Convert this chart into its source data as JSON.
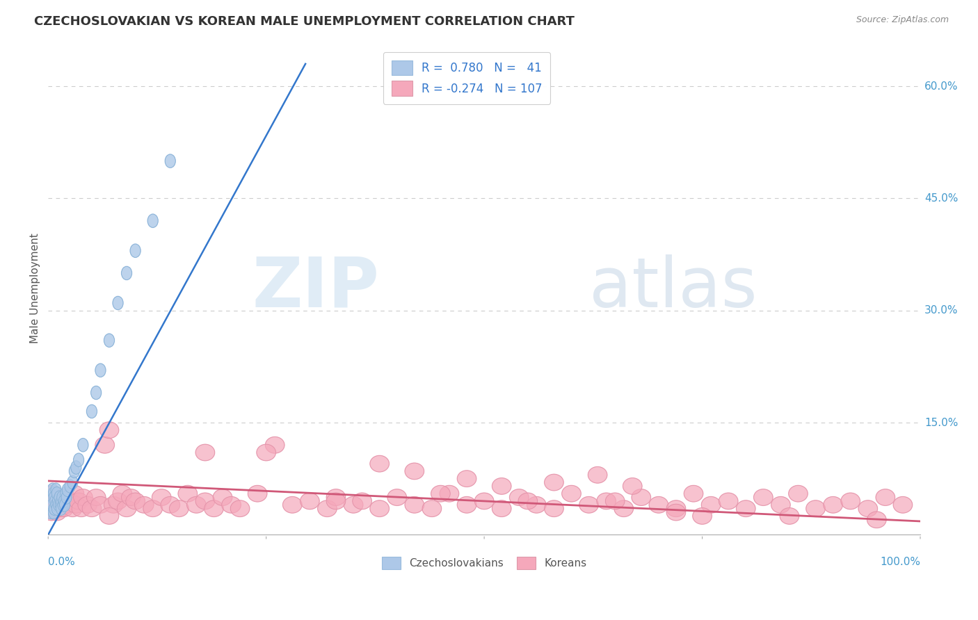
{
  "title": "CZECHOSLOVAKIAN VS KOREAN MALE UNEMPLOYMENT CORRELATION CHART",
  "source_text": "Source: ZipAtlas.com",
  "ylabel": "Male Unemployment",
  "x_range": [
    0.0,
    1.0
  ],
  "y_range": [
    0.0,
    0.66
  ],
  "legend_blue_r": "R =  0.780",
  "legend_blue_n": "N =   41",
  "legend_pink_r": "R = -0.274",
  "legend_pink_n": "N = 107",
  "watermark1": "ZIP",
  "watermark2": "atlas",
  "blue_color": "#adc8e8",
  "pink_color": "#f5a8bb",
  "blue_line_color": "#3377cc",
  "pink_line_color": "#d05878",
  "axis_label_color": "#4499cc",
  "grid_color": "#cccccc",
  "blue_line_x": [
    0.0,
    0.295
  ],
  "blue_line_y": [
    0.0,
    0.63
  ],
  "pink_line_x": [
    0.0,
    1.0
  ],
  "pink_line_y": [
    0.072,
    0.018
  ],
  "blue_scatter_x": [
    0.003,
    0.004,
    0.005,
    0.005,
    0.006,
    0.006,
    0.007,
    0.007,
    0.008,
    0.009,
    0.009,
    0.01,
    0.01,
    0.011,
    0.012,
    0.013,
    0.014,
    0.015,
    0.015,
    0.016,
    0.017,
    0.018,
    0.019,
    0.02,
    0.021,
    0.022,
    0.025,
    0.028,
    0.03,
    0.032,
    0.035,
    0.04,
    0.05,
    0.055,
    0.06,
    0.07,
    0.08,
    0.09,
    0.1,
    0.12,
    0.14
  ],
  "blue_scatter_y": [
    0.03,
    0.05,
    0.04,
    0.06,
    0.03,
    0.055,
    0.035,
    0.05,
    0.045,
    0.04,
    0.06,
    0.035,
    0.055,
    0.045,
    0.04,
    0.05,
    0.04,
    0.045,
    0.035,
    0.05,
    0.04,
    0.045,
    0.04,
    0.055,
    0.05,
    0.06,
    0.065,
    0.07,
    0.085,
    0.09,
    0.1,
    0.12,
    0.165,
    0.19,
    0.22,
    0.26,
    0.31,
    0.35,
    0.38,
    0.42,
    0.5
  ],
  "pink_scatter_x": [
    0.003,
    0.004,
    0.005,
    0.005,
    0.006,
    0.007,
    0.008,
    0.009,
    0.01,
    0.01,
    0.012,
    0.013,
    0.014,
    0.015,
    0.016,
    0.017,
    0.018,
    0.02,
    0.022,
    0.025,
    0.028,
    0.03,
    0.032,
    0.035,
    0.038,
    0.04,
    0.045,
    0.05,
    0.055,
    0.06,
    0.065,
    0.07,
    0.075,
    0.08,
    0.085,
    0.09,
    0.095,
    0.1,
    0.11,
    0.12,
    0.13,
    0.14,
    0.15,
    0.16,
    0.17,
    0.18,
    0.19,
    0.2,
    0.21,
    0.22,
    0.24,
    0.26,
    0.28,
    0.3,
    0.32,
    0.33,
    0.35,
    0.36,
    0.38,
    0.4,
    0.42,
    0.44,
    0.46,
    0.48,
    0.5,
    0.52,
    0.54,
    0.56,
    0.58,
    0.6,
    0.62,
    0.64,
    0.66,
    0.68,
    0.7,
    0.72,
    0.74,
    0.76,
    0.78,
    0.8,
    0.82,
    0.84,
    0.86,
    0.88,
    0.9,
    0.92,
    0.94,
    0.96,
    0.98,
    0.38,
    0.42,
    0.48,
    0.52,
    0.58,
    0.63,
    0.67,
    0.72,
    0.18,
    0.25,
    0.33,
    0.45,
    0.55,
    0.65,
    0.75,
    0.85,
    0.95,
    0.07
  ],
  "pink_scatter_y": [
    0.045,
    0.03,
    0.055,
    0.035,
    0.04,
    0.045,
    0.035,
    0.05,
    0.04,
    0.03,
    0.045,
    0.04,
    0.035,
    0.05,
    0.04,
    0.045,
    0.035,
    0.05,
    0.04,
    0.045,
    0.035,
    0.055,
    0.04,
    0.045,
    0.035,
    0.05,
    0.04,
    0.035,
    0.05,
    0.04,
    0.12,
    0.14,
    0.04,
    0.045,
    0.055,
    0.035,
    0.05,
    0.045,
    0.04,
    0.035,
    0.05,
    0.04,
    0.035,
    0.055,
    0.04,
    0.045,
    0.035,
    0.05,
    0.04,
    0.035,
    0.055,
    0.12,
    0.04,
    0.045,
    0.035,
    0.05,
    0.04,
    0.045,
    0.035,
    0.05,
    0.04,
    0.035,
    0.055,
    0.04,
    0.045,
    0.035,
    0.05,
    0.04,
    0.035,
    0.055,
    0.04,
    0.045,
    0.035,
    0.05,
    0.04,
    0.035,
    0.055,
    0.04,
    0.045,
    0.035,
    0.05,
    0.04,
    0.055,
    0.035,
    0.04,
    0.045,
    0.035,
    0.05,
    0.04,
    0.095,
    0.085,
    0.075,
    0.065,
    0.07,
    0.08,
    0.065,
    0.03,
    0.11,
    0.11,
    0.045,
    0.055,
    0.045,
    0.045,
    0.025,
    0.025,
    0.02,
    0.025
  ]
}
